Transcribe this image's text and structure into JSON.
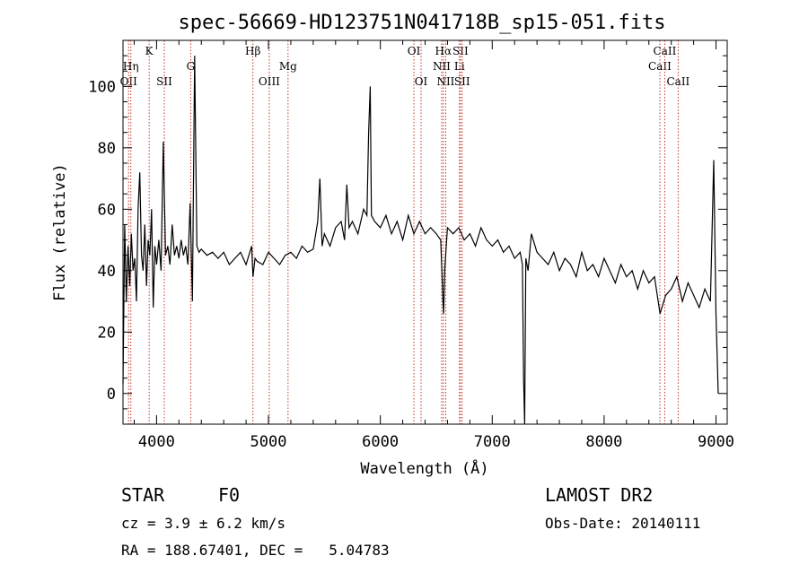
{
  "chart_data": {
    "type": "line",
    "title": "spec-56669-HD123751N041718B_sp15-051.fits",
    "xlabel": "Wavelength (Å)",
    "ylabel": "Flux (relative)",
    "xlim": [
      3700,
      9100
    ],
    "ylim": [
      -10,
      115
    ],
    "xticks": [
      4000,
      5000,
      6000,
      7000,
      8000,
      9000
    ],
    "yticks": [
      0,
      20,
      40,
      60,
      80,
      100
    ],
    "grid": false,
    "series": [
      {
        "x": [
          3700,
          3715,
          3730,
          3745,
          3760,
          3775,
          3790,
          3805,
          3820,
          3835,
          3850,
          3865,
          3880,
          3895,
          3910,
          3925,
          3940,
          3955,
          3970,
          3985,
          4000,
          4020,
          4040,
          4060,
          4080,
          4100,
          4120,
          4140,
          4160,
          4180,
          4200,
          4220,
          4240,
          4260,
          4280,
          4300,
          4320,
          4340,
          4360,
          4380,
          4400,
          4450,
          4500,
          4550,
          4600,
          4650,
          4700,
          4750,
          4800,
          4850,
          4862,
          4880,
          4900,
          4950,
          5000,
          5050,
          5100,
          5150,
          5200,
          5250,
          5300,
          5350,
          5400,
          5440,
          5460,
          5480,
          5500,
          5550,
          5600,
          5650,
          5680,
          5700,
          5720,
          5750,
          5800,
          5850,
          5880,
          5895,
          5910,
          5920,
          5950,
          6000,
          6050,
          6100,
          6150,
          6200,
          6250,
          6300,
          6350,
          6400,
          6450,
          6500,
          6540,
          6560,
          6565,
          6575,
          6600,
          6650,
          6700,
          6750,
          6800,
          6850,
          6900,
          6950,
          7000,
          7050,
          7100,
          7150,
          7200,
          7250,
          7270,
          7280,
          7290,
          7300,
          7320,
          7350,
          7400,
          7450,
          7500,
          7550,
          7600,
          7650,
          7700,
          7750,
          7800,
          7850,
          7900,
          7950,
          8000,
          8050,
          8100,
          8150,
          8200,
          8250,
          8300,
          8350,
          8400,
          8450,
          8500,
          8550,
          8600,
          8650,
          8700,
          8750,
          8800,
          8850,
          8900,
          8950,
          8980,
          9000,
          9020
        ],
        "y": [
          3,
          55,
          30,
          48,
          35,
          52,
          40,
          44,
          30,
          60,
          72,
          45,
          40,
          55,
          35,
          50,
          45,
          60,
          28,
          48,
          42,
          50,
          40,
          82,
          45,
          48,
          42,
          55,
          45,
          48,
          44,
          50,
          45,
          48,
          42,
          62,
          30,
          110,
          48,
          46,
          47,
          45,
          46,
          44,
          46,
          42,
          44,
          46,
          42,
          48,
          38,
          44,
          43,
          42,
          46,
          44,
          42,
          45,
          46,
          44,
          48,
          46,
          47,
          56,
          70,
          48,
          52,
          48,
          54,
          56,
          50,
          68,
          54,
          56,
          52,
          60,
          58,
          85,
          100,
          58,
          56,
          54,
          58,
          52,
          56,
          50,
          58,
          52,
          56,
          52,
          54,
          52,
          50,
          30,
          26,
          40,
          54,
          52,
          54,
          50,
          52,
          48,
          54,
          50,
          48,
          50,
          46,
          48,
          44,
          46,
          42,
          5,
          -10,
          44,
          40,
          52,
          46,
          44,
          42,
          46,
          40,
          44,
          42,
          38,
          46,
          40,
          42,
          38,
          44,
          40,
          36,
          42,
          38,
          40,
          34,
          40,
          36,
          38,
          26,
          32,
          34,
          38,
          30,
          36,
          32,
          28,
          34,
          30,
          76,
          26,
          0
        ]
      }
    ],
    "lines": [
      {
        "x": 3750,
        "label": "OII",
        "row": 3
      },
      {
        "x": 3770,
        "label": "Hη",
        "row": 2
      },
      {
        "x": 3934,
        "label": "K",
        "row": 1
      },
      {
        "x": 4069,
        "label": "SII",
        "row": 3
      },
      {
        "x": 4305,
        "label": "G",
        "row": 2
      },
      {
        "x": 4861,
        "label": "Hβ",
        "row": 1
      },
      {
        "x": 5007,
        "label": "OIII",
        "row": 3
      },
      {
        "x": 5175,
        "label": "Mg",
        "row": 2
      },
      {
        "x": 6300,
        "label": "OI",
        "row": 1
      },
      {
        "x": 6364,
        "label": "OI",
        "row": 3
      },
      {
        "x": 6548,
        "label": "NII",
        "row": 2
      },
      {
        "x": 6563,
        "label": "Hα",
        "row": 1
      },
      {
        "x": 6584,
        "label": "NII",
        "row": 3
      },
      {
        "x": 6707,
        "label": "Li",
        "row": 2
      },
      {
        "x": 6716,
        "label": "SII",
        "row": 1
      },
      {
        "x": 6731,
        "label": "SII",
        "row": 3
      },
      {
        "x": 8498,
        "label": "CaII",
        "row": 2
      },
      {
        "x": 8542,
        "label": "CaII",
        "row": 1
      },
      {
        "x": 8662,
        "label": "CaII",
        "row": 3
      }
    ]
  },
  "info": {
    "class": "STAR",
    "subclass": "F0",
    "survey": "LAMOST DR2",
    "cz": "cz = 3.9 ± 6.2 km/s",
    "obsdate": "Obs-Date: 20140111",
    "coords": "RA = 188.67401, DEC =   5.04783"
  }
}
